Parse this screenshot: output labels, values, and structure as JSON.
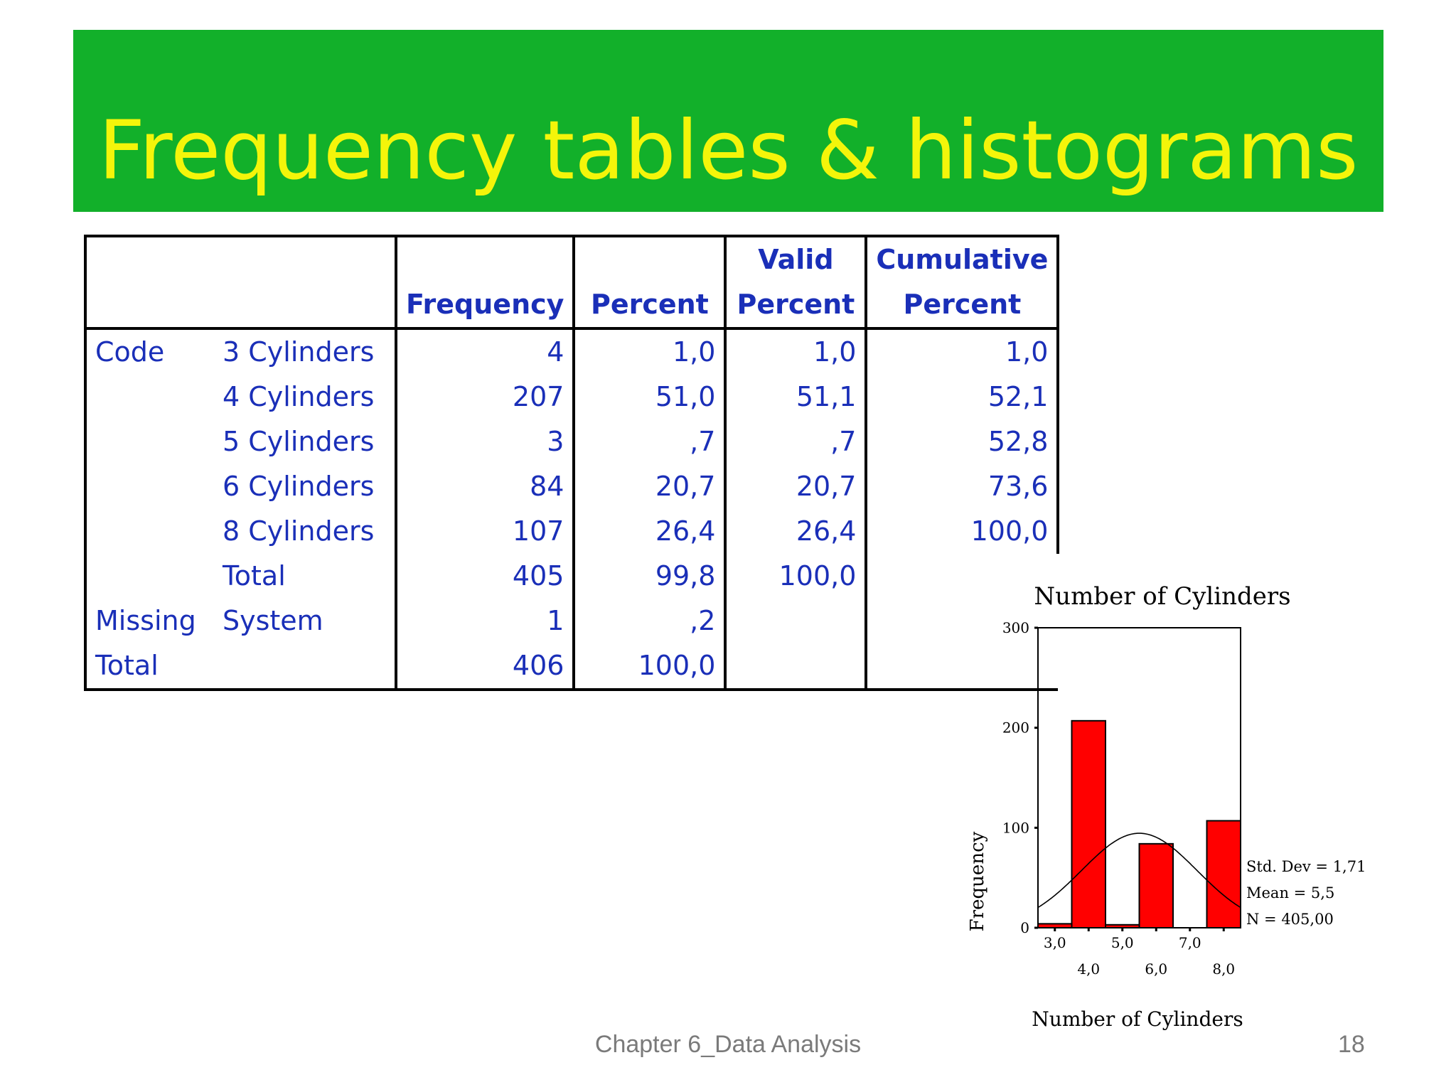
{
  "slide": {
    "title": "Frequency tables & histograms",
    "footer": "Chapter 6_Data Analysis",
    "page_number": "18"
  },
  "table": {
    "headers": {
      "frequency": "Frequency",
      "percent": "Percent",
      "valid_top": "Valid",
      "valid_bottom": "Percent",
      "cumulative_top": "Cumulative",
      "cumulative_bottom": "Percent"
    },
    "rows": [
      {
        "group": "Code",
        "category": "3 Cylinders",
        "frequency": "4",
        "percent": "1,0",
        "valid": "1,0",
        "cumulative": "1,0"
      },
      {
        "group": "",
        "category": "4 Cylinders",
        "frequency": "207",
        "percent": "51,0",
        "valid": "51,1",
        "cumulative": "52,1"
      },
      {
        "group": "",
        "category": "5 Cylinders",
        "frequency": "3",
        "percent": ",7",
        "valid": ",7",
        "cumulative": "52,8"
      },
      {
        "group": "",
        "category": "6 Cylinders",
        "frequency": "84",
        "percent": "20,7",
        "valid": "20,7",
        "cumulative": "73,6"
      },
      {
        "group": "",
        "category": "8 Cylinders",
        "frequency": "107",
        "percent": "26,4",
        "valid": "26,4",
        "cumulative": "100,0"
      },
      {
        "group": "",
        "category": "Total",
        "frequency": "405",
        "percent": "99,8",
        "valid": "100,0",
        "cumulative": ""
      },
      {
        "group": "Missing",
        "category": "System",
        "frequency": "1",
        "percent": ",2",
        "valid": "",
        "cumulative": ""
      },
      {
        "group": "Total",
        "category": "",
        "frequency": "406",
        "percent": "100,0",
        "valid": "",
        "cumulative": ""
      }
    ]
  },
  "chart_data": {
    "type": "bar",
    "title": "Number of Cylinders",
    "xlabel": "Number of Cylinders",
    "ylabel": "Frequency",
    "categories": [
      "3,0",
      "4,0",
      "5,0",
      "6,0",
      "7,0",
      "8,0"
    ],
    "values": [
      4,
      207,
      3,
      84,
      0,
      107
    ],
    "ylim": [
      0,
      300
    ],
    "yticks": [
      "0",
      "100",
      "200",
      "300"
    ],
    "normal_curve": true,
    "stats": [
      "Std. Dev = 1,71",
      "Mean = 5,5",
      "N = 405,00"
    ],
    "colors": {
      "bar": "#ff0000",
      "outline": "#000000"
    }
  }
}
